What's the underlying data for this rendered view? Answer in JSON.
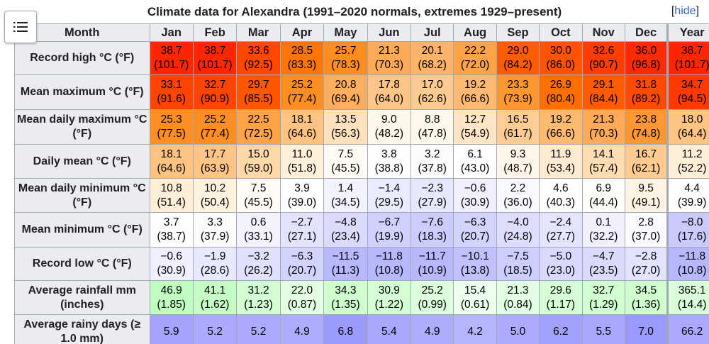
{
  "caption": {
    "title": "Climate data for Alexandra (1991–2020 normals, extremes 1929–present)",
    "hide_open": "[",
    "hide_label": "hide",
    "hide_close": "]"
  },
  "menu": {
    "icon": "list-icon"
  },
  "header": {
    "month": "Month",
    "cols": [
      "Jan",
      "Feb",
      "Mar",
      "Apr",
      "May",
      "Jun",
      "Jul",
      "Aug",
      "Sep",
      "Oct",
      "Nov",
      "Dec",
      "Year"
    ]
  },
  "rows": [
    {
      "label": "Record high °C (°F)",
      "values": [
        [
          "38.7",
          "(101.7)"
        ],
        [
          "38.7",
          "(101.7)"
        ],
        [
          "33.6",
          "(92.5)"
        ],
        [
          "28.5",
          "(83.3)"
        ],
        [
          "25.7",
          "(78.3)"
        ],
        [
          "21.3",
          "(70.3)"
        ],
        [
          "20.1",
          "(68.2)"
        ],
        [
          "22.2",
          "(72.0)"
        ],
        [
          "29.0",
          "(84.2)"
        ],
        [
          "30.0",
          "(86.0)"
        ],
        [
          "32.6",
          "(90.7)"
        ],
        [
          "36.0",
          "(96.8)"
        ],
        [
          "38.7",
          "(101.7)"
        ]
      ],
      "colors": [
        "#ff2600",
        "#ff2600",
        "#ff4700",
        "#ff7406",
        "#ff8d20",
        "#ffaa56",
        "#ffb468",
        "#ffa349",
        "#ff5c00",
        "#ff5300",
        "#ff3d00",
        "#ff2b00",
        "#ff2600"
      ]
    },
    {
      "label": "Mean maximum °C (°F)",
      "values": [
        [
          "33.1",
          "(91.6)"
        ],
        [
          "32.7",
          "(90.9)"
        ],
        [
          "29.7",
          "(85.5)"
        ],
        [
          "25.2",
          "(77.4)"
        ],
        [
          "20.8",
          "(69.4)"
        ],
        [
          "17.8",
          "(64.0)"
        ],
        [
          "17.0",
          "(62.6)"
        ],
        [
          "19.2",
          "(66.6)"
        ],
        [
          "23.3",
          "(73.9)"
        ],
        [
          "26.9",
          "(80.4)"
        ],
        [
          "29.1",
          "(84.4)"
        ],
        [
          "31.8",
          "(89.2)"
        ],
        [
          "34.7",
          "(94.5)"
        ]
      ],
      "colors": [
        "#ff4300",
        "#ff4500",
        "#ff5600",
        "#ff8e21",
        "#ffae5d",
        "#ffc586",
        "#ffcb90",
        "#ffb972",
        "#ff9731",
        "#ff6f00",
        "#ff5b00",
        "#ff4b00",
        "#ff3900"
      ]
    },
    {
      "label": "Mean daily maximum °C (°F)",
      "values": [
        [
          "25.3",
          "(77.5)"
        ],
        [
          "25.2",
          "(77.4)"
        ],
        [
          "22.5",
          "(72.5)"
        ],
        [
          "18.1",
          "(64.6)"
        ],
        [
          "13.5",
          "(56.3)"
        ],
        [
          "9.0",
          "(48.2)"
        ],
        [
          "8.8",
          "(47.8)"
        ],
        [
          "12.7",
          "(54.9)"
        ],
        [
          "16.5",
          "(61.7)"
        ],
        [
          "19.2",
          "(66.6)"
        ],
        [
          "21.3",
          "(70.3)"
        ],
        [
          "23.8",
          "(74.8)"
        ],
        [
          "18.0",
          "(64.4)"
        ]
      ],
      "colors": [
        "#ff8f22",
        "#ff8f22",
        "#ffa248",
        "#ffc281",
        "#ffe1bd",
        "#fff7eb",
        "#fff8ed",
        "#ffe5c6",
        "#ffcd93",
        "#ffba72",
        "#ffaa56",
        "#ff9834",
        "#ffc382"
      ]
    },
    {
      "label": "Daily mean °C (°F)",
      "values": [
        [
          "18.1",
          "(64.6)"
        ],
        [
          "17.7",
          "(63.9)"
        ],
        [
          "15.0",
          "(59.0)"
        ],
        [
          "11.0",
          "(51.8)"
        ],
        [
          "7.5",
          "(45.5)"
        ],
        [
          "3.8",
          "(38.8)"
        ],
        [
          "3.2",
          "(37.8)"
        ],
        [
          "6.1",
          "(43.0)"
        ],
        [
          "9.3",
          "(48.7)"
        ],
        [
          "11.9",
          "(53.4)"
        ],
        [
          "14.1",
          "(57.4)"
        ],
        [
          "16.7",
          "(62.1)"
        ],
        [
          "11.2",
          "(52.2)"
        ]
      ],
      "colors": [
        "#ffc281",
        "#ffc586",
        "#ffd8a8",
        "#fff0d9",
        "#fffbf4",
        "#fefeff",
        "#fcfcff",
        "#ffffff",
        "#fff6e9",
        "#ffebd1",
        "#ffdcb2",
        "#ffcb90",
        "#ffefd7"
      ]
    },
    {
      "label": "Mean daily minimum °C (°F)",
      "values": [
        [
          "10.8",
          "(51.4)"
        ],
        [
          "10.2",
          "(50.4)"
        ],
        [
          "7.5",
          "(45.5)"
        ],
        [
          "3.9",
          "(39.0)"
        ],
        [
          "1.4",
          "(34.5)"
        ],
        [
          "−1.4",
          "(29.5)"
        ],
        [
          "−2.3",
          "(27.9)"
        ],
        [
          "−0.6",
          "(30.9)"
        ],
        [
          "2.2",
          "(36.0)"
        ],
        [
          "4.6",
          "(40.3)"
        ],
        [
          "6.9",
          "(44.4)"
        ],
        [
          "9.5",
          "(49.1)"
        ],
        [
          "4.4",
          "(39.9)"
        ]
      ],
      "colors": [
        "#ffefd8",
        "#fff2df",
        "#fffbf4",
        "#ffffff",
        "#f3f3ff",
        "#ebebff",
        "#e7e7ff",
        "#efefff",
        "#f8f8ff",
        "#ffffff",
        "#fffdf9",
        "#fff4e4",
        "#ffffff"
      ]
    },
    {
      "label": "Mean minimum °C (°F)",
      "values": [
        [
          "3.7",
          "(38.7)"
        ],
        [
          "3.3",
          "(37.9)"
        ],
        [
          "0.6",
          "(33.1)"
        ],
        [
          "−2.7",
          "(27.1)"
        ],
        [
          "−4.8",
          "(23.4)"
        ],
        [
          "−6.7",
          "(19.9)"
        ],
        [
          "−7.6",
          "(18.3)"
        ],
        [
          "−6.3",
          "(20.7)"
        ],
        [
          "−4.0",
          "(24.8)"
        ],
        [
          "−2.4",
          "(27.7)"
        ],
        [
          "0.1",
          "(32.2)"
        ],
        [
          "2.8",
          "(37.0)"
        ],
        [
          "−8.0",
          "(17.6)"
        ]
      ],
      "colors": [
        "#fefeff",
        "#fcfcff",
        "#f2f2ff",
        "#e3e3ff",
        "#dadaff",
        "#d1d1ff",
        "#ccccff",
        "#d3d3ff",
        "#ddddff",
        "#e4e4ff",
        "#f0f0ff",
        "#fafaff",
        "#cacaff"
      ]
    },
    {
      "label": "Record low °C (°F)",
      "values": [
        [
          "−0.6",
          "(30.9)"
        ],
        [
          "−1.9",
          "(28.6)"
        ],
        [
          "−3.2",
          "(26.2)"
        ],
        [
          "−6.3",
          "(20.7)"
        ],
        [
          "−11.5",
          "(11.3)"
        ],
        [
          "−11.8",
          "(10.8)"
        ],
        [
          "−11.7",
          "(10.9)"
        ],
        [
          "−10.1",
          "(13.8)"
        ],
        [
          "−7.5",
          "(18.5)"
        ],
        [
          "−5.0",
          "(23.0)"
        ],
        [
          "−4.7",
          "(23.5)"
        ],
        [
          "−2.8",
          "(27.0)"
        ],
        [
          "−11.8",
          "(10.8)"
        ]
      ],
      "colors": [
        "#efefff",
        "#e8e8ff",
        "#e1e1ff",
        "#d3d3ff",
        "#b8b8ff",
        "#b7b7ff",
        "#b8b8ff",
        "#c1c1ff",
        "#cdcdff",
        "#d9d9ff",
        "#dadaff",
        "#e3e3ff",
        "#b7b7ff"
      ]
    },
    {
      "label": "Average rainfall mm (inches)",
      "values": [
        [
          "46.9",
          "(1.85)"
        ],
        [
          "41.1",
          "(1.62)"
        ],
        [
          "31.2",
          "(1.23)"
        ],
        [
          "22.0",
          "(0.87)"
        ],
        [
          "34.3",
          "(1.35)"
        ],
        [
          "30.9",
          "(1.22)"
        ],
        [
          "25.2",
          "(0.99)"
        ],
        [
          "15.4",
          "(0.61)"
        ],
        [
          "21.3",
          "(0.84)"
        ],
        [
          "29.6",
          "(1.17)"
        ],
        [
          "32.7",
          "(1.29)"
        ],
        [
          "34.5",
          "(1.36)"
        ],
        [
          "365.1",
          "(14.4)"
        ]
      ],
      "colors": [
        "#c0fdc0",
        "#c6fdc6",
        "#d3fed3",
        "#e2ffe2",
        "#cffecf",
        "#d4fed4",
        "#dcfedc",
        "#ecffec",
        "#e3ffe3",
        "#d6fed6",
        "#d1fed1",
        "#cffecf",
        "#d9fed9"
      ]
    },
    {
      "label": "Average rainy days (≥ 1.0 mm)",
      "values": [
        [
          "5.9",
          ""
        ],
        [
          "5.2",
          ""
        ],
        [
          "5.2",
          ""
        ],
        [
          "4.9",
          ""
        ],
        [
          "6.8",
          ""
        ],
        [
          "5.4",
          ""
        ],
        [
          "4.9",
          ""
        ],
        [
          "4.2",
          ""
        ],
        [
          "5.0",
          ""
        ],
        [
          "6.2",
          ""
        ],
        [
          "5.5",
          ""
        ],
        [
          "7.0",
          ""
        ],
        [
          "66.2",
          ""
        ]
      ],
      "colors": [
        "#a4a4ff",
        "#aaaaff",
        "#aaaaff",
        "#adadff",
        "#9a9aff",
        "#a8a8ff",
        "#adadff",
        "#b4b4ff",
        "#ababff",
        "#a1a1ff",
        "#a7a7ff",
        "#9999ff",
        "#a9a9ff"
      ]
    }
  ]
}
